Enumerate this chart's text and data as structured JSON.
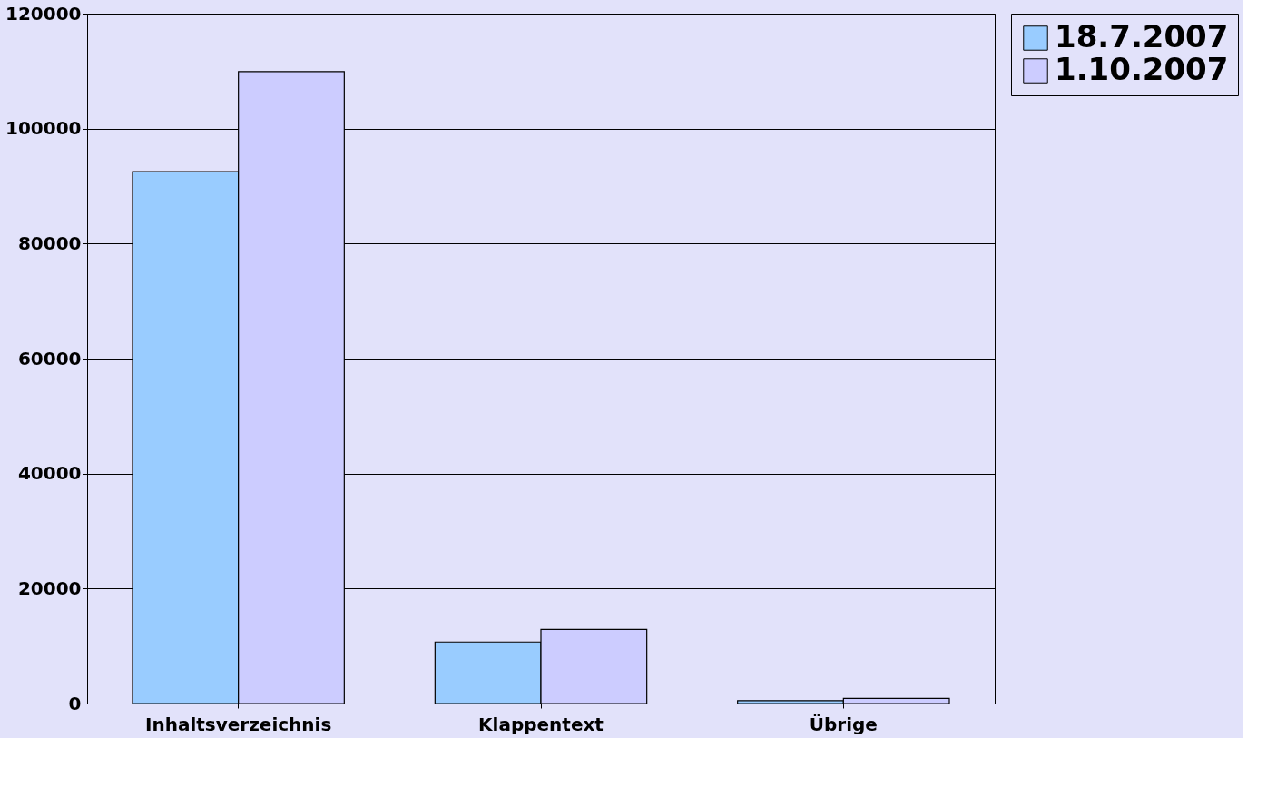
{
  "chart_data": {
    "type": "bar",
    "categories": [
      "Inhaltsverzeichnis",
      "Klappentext",
      "Übrige"
    ],
    "series": [
      {
        "name": "18.7.2007",
        "color": "#99ccff",
        "values": [
          92500,
          10700,
          500
        ]
      },
      {
        "name": "1.10.2007",
        "color": "#ccccff",
        "values": [
          109900,
          12900,
          900
        ]
      }
    ],
    "ylim": [
      0,
      120000
    ],
    "yticks": [
      0,
      20000,
      40000,
      60000,
      80000,
      100000,
      120000
    ],
    "grid": "y",
    "legend": "right"
  }
}
